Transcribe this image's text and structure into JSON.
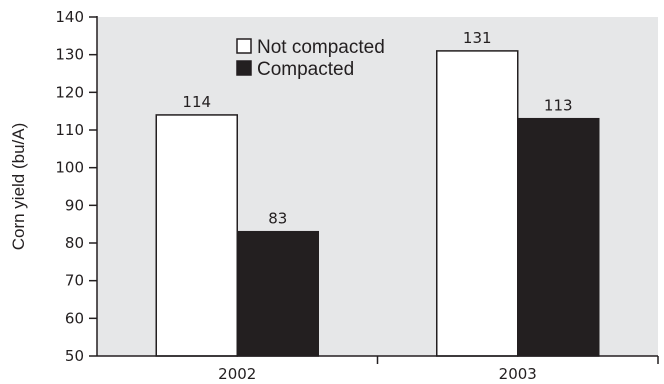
{
  "chart_data": {
    "type": "bar",
    "title": "",
    "xlabel": "",
    "ylabel": "Corn yield (bu/A)",
    "ylim": [
      50,
      140
    ],
    "yticks": [
      50,
      60,
      70,
      80,
      90,
      100,
      110,
      120,
      130,
      140
    ],
    "categories": [
      "2002",
      "2003"
    ],
    "series": [
      {
        "name": "Not compacted",
        "values": [
          114,
          131
        ],
        "labels": [
          "114",
          "131"
        ],
        "color": "#ffffff"
      },
      {
        "name": "Compacted",
        "values": [
          83,
          113
        ],
        "labels": [
          "83",
          "113"
        ],
        "color": "#231f20"
      }
    ],
    "legend": "top-center",
    "grid": false,
    "plot_background": "#e6e7e8",
    "bar_outline": "#231f20"
  }
}
